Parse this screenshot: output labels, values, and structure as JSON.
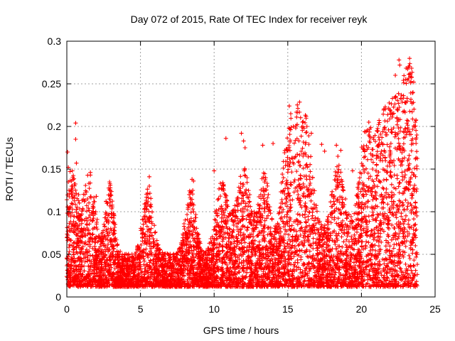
{
  "chart_data": {
    "type": "scatter",
    "title": "Day 072 of 2015, Rate Of TEC Index for receiver reyk",
    "xlabel": "GPS time / hours",
    "ylabel": "ROTI / TECUs",
    "xlim": [
      0,
      25
    ],
    "ylim": [
      0,
      0.3
    ],
    "xticks": [
      0,
      5,
      10,
      15,
      20,
      25
    ],
    "yticks": [
      0,
      0.05,
      0.1,
      0.15,
      0.2,
      0.25,
      0.3
    ],
    "xtick_labels": [
      "0",
      "5",
      "10",
      "15",
      "20",
      "25"
    ],
    "ytick_labels": [
      "0",
      "0.05",
      "0.1",
      "0.15",
      "0.2",
      "0.25",
      "0.3"
    ],
    "grid": true,
    "marker": "+",
    "color": "#ff0000",
    "x_data_range": [
      0,
      23.8
    ],
    "series": [
      {
        "name": "ROTI",
        "points": [
          [
            0.05,
            0.17
          ],
          [
            0.1,
            0.152
          ],
          [
            0.1,
            0.135
          ],
          [
            0.15,
            0.125
          ],
          [
            0.2,
            0.105
          ],
          [
            0.6,
            0.204
          ],
          [
            0.6,
            0.185
          ],
          [
            0.65,
            0.157
          ],
          [
            0.8,
            0.12
          ],
          [
            1.4,
            0.115
          ],
          [
            1.6,
            0.146
          ],
          [
            1.6,
            0.143
          ],
          [
            2.0,
            0.118
          ],
          [
            2.95,
            0.131
          ],
          [
            2.95,
            0.128
          ],
          [
            5.6,
            0.141
          ],
          [
            5.6,
            0.13
          ],
          [
            8.5,
            0.138
          ],
          [
            8.6,
            0.136
          ],
          [
            8.55,
            0.125
          ],
          [
            10.0,
            0.148
          ],
          [
            10.8,
            0.186
          ],
          [
            11.85,
            0.192
          ],
          [
            12.0,
            0.183
          ],
          [
            12.1,
            0.175
          ],
          [
            13.3,
            0.178
          ],
          [
            14.0,
            0.18
          ],
          [
            15.1,
            0.224
          ],
          [
            15.2,
            0.215
          ],
          [
            15.6,
            0.211
          ],
          [
            16.0,
            0.205
          ],
          [
            16.1,
            0.198
          ],
          [
            16.6,
            0.192
          ],
          [
            17.3,
            0.179
          ],
          [
            17.5,
            0.171
          ],
          [
            18.3,
            0.178
          ],
          [
            18.4,
            0.165
          ],
          [
            18.6,
            0.172
          ],
          [
            19.4,
            0.148
          ],
          [
            20.5,
            0.205
          ],
          [
            20.5,
            0.19
          ],
          [
            21.6,
            0.17
          ],
          [
            22.0,
            0.18
          ],
          [
            22.3,
            0.26
          ],
          [
            22.55,
            0.278
          ],
          [
            22.6,
            0.272
          ],
          [
            23.0,
            0.228
          ],
          [
            23.1,
            0.233
          ],
          [
            23.3,
            0.262
          ],
          [
            23.4,
            0.258
          ],
          [
            23.5,
            0.24
          ],
          [
            23.55,
            0.252
          ],
          [
            23.6,
            0.2
          ],
          [
            23.7,
            0.185
          ]
        ]
      }
    ]
  }
}
